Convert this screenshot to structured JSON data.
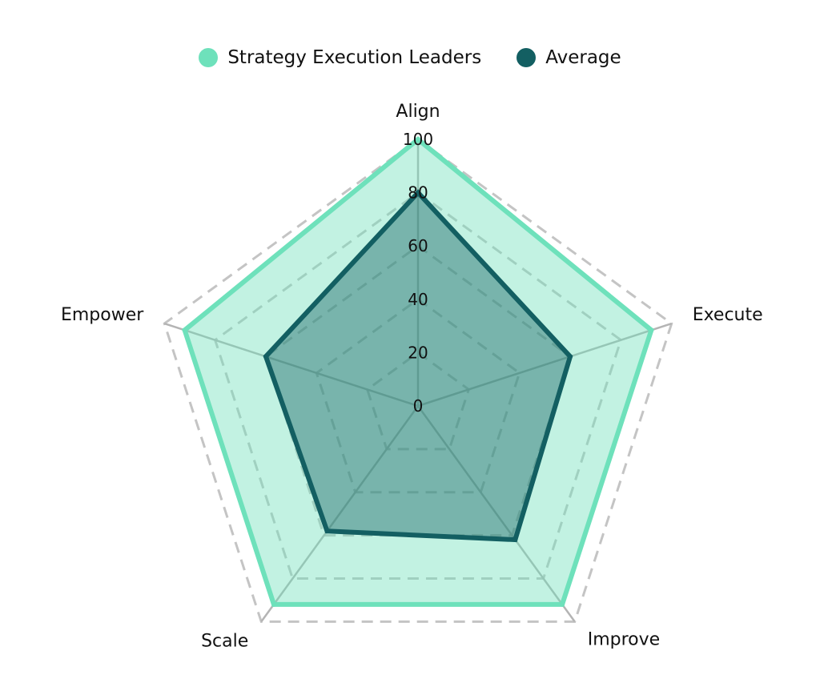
{
  "chart_data": {
    "type": "radar",
    "axes": [
      "Align",
      "Execute",
      "Improve",
      "Scale",
      "Empower"
    ],
    "rlim": [
      0,
      100
    ],
    "ticks": [
      "0",
      "20",
      "40",
      "60",
      "80",
      "100"
    ],
    "tick_values": [
      0,
      20,
      40,
      60,
      80,
      100
    ],
    "grid": true,
    "legend_position": "top-center",
    "series": [
      {
        "name": "Strategy Execution Leaders",
        "values": [
          100,
          92,
          92,
          92,
          92
        ],
        "color": "#6ee1bb",
        "fill": "rgba(110,225,187,0.42)"
      },
      {
        "name": "Average",
        "values": [
          80,
          60,
          62,
          58,
          60
        ],
        "color": "#135f62",
        "fill": "rgba(19,95,98,0.42)"
      }
    ]
  },
  "colors": {
    "grid_dashed": "#c4c4c4",
    "spoke": "#b4b4b4"
  }
}
